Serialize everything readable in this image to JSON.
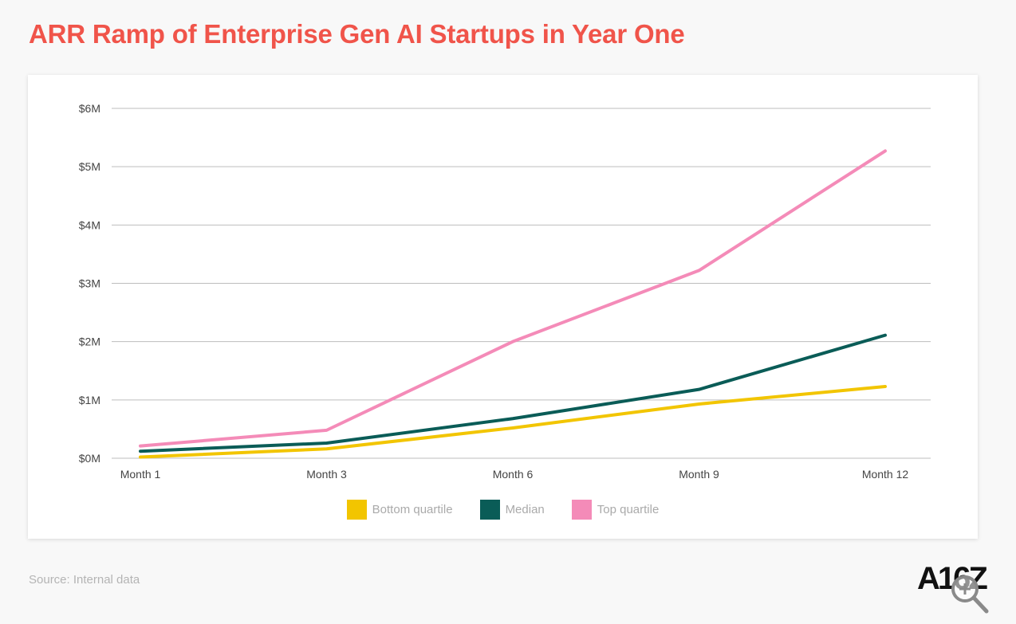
{
  "page": {
    "title": "ARR Ramp of Enterprise Gen AI Startups in Year One",
    "source": "Source: Internal data",
    "logo_text": "A16Z"
  },
  "colors": {
    "title": "#f0544a",
    "grid": "#bdbdbd",
    "axis_text": "#444444",
    "legend_text": "#aaaaaa"
  },
  "icons": {
    "zoom": "zoom-in-magnifier-icon"
  },
  "chart_data": {
    "type": "line",
    "title": "ARR Ramp of Enterprise Gen AI Startups in Year One",
    "xlabel": "",
    "ylabel": "",
    "categories": [
      "Month 1",
      "Month 3",
      "Month 6",
      "Month 9",
      "Month 12"
    ],
    "ylim": [
      0,
      6
    ],
    "yticks": [
      0,
      1,
      2,
      3,
      4,
      5,
      6
    ],
    "ytick_labels": [
      "$0M",
      "$1M",
      "$2M",
      "$3M",
      "$4M",
      "$5M",
      "$6M"
    ],
    "grid": "horizontal",
    "legend_position": "bottom-center",
    "series": [
      {
        "name": "Bottom quartile",
        "color": "#f2c500",
        "values": [
          0.02,
          0.16,
          0.52,
          0.93,
          1.23
        ]
      },
      {
        "name": "Median",
        "color": "#0a5c57",
        "values": [
          0.12,
          0.26,
          0.68,
          1.18,
          2.11
        ]
      },
      {
        "name": "Top quartile",
        "color": "#f48bb8",
        "values": [
          0.21,
          0.48,
          2.0,
          3.22,
          5.27
        ]
      }
    ]
  }
}
